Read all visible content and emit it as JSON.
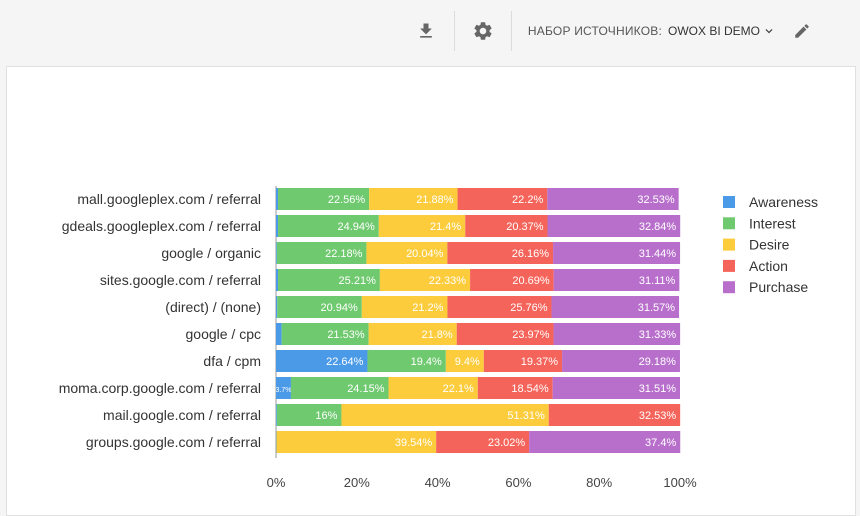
{
  "toolbar": {
    "download_icon": "download-icon",
    "settings_icon": "gear-icon",
    "source_set_label": "НАБОР ИСТОЧНИКОВ:",
    "source_set_value": "OWOX BI DEMO",
    "dropdown_icon": "chevron-down-icon",
    "edit_icon": "pencil-icon"
  },
  "chart_data": {
    "type": "bar",
    "orientation": "horizontal",
    "stacked": "percent",
    "categories": [
      "mall.googleplex.com / referral",
      "gdeals.googleplex.com / referral",
      "google / organic",
      "sites.google.com / referral",
      "(direct) / (none)",
      "google / cpc",
      "dfa / cpm",
      "moma.corp.google.com / referral",
      "mail.google.com / referral",
      "groups.google.com / referral"
    ],
    "series": [
      {
        "name": "Awareness",
        "color": "#4a9ae8",
        "values": [
          0.5,
          0.5,
          0.2,
          0.5,
          0.3,
          1.4,
          22.64,
          3.7,
          0.2,
          0.1
        ],
        "labels": [
          "",
          "",
          "",
          "",
          "",
          "",
          "22.64%",
          "3.7%",
          "",
          ""
        ]
      },
      {
        "name": "Interest",
        "color": "#6fc96f",
        "values": [
          22.56,
          24.94,
          22.18,
          25.21,
          20.94,
          21.53,
          19.4,
          24.15,
          16,
          0
        ],
        "labels": [
          "22.56%",
          "24.94%",
          "22.18%",
          "25.21%",
          "20.94%",
          "21.53%",
          "19.4%",
          "24.15%",
          "16%",
          ""
        ]
      },
      {
        "name": "Desire",
        "color": "#fccc3c",
        "values": [
          21.88,
          21.4,
          20.04,
          22.33,
          21.2,
          21.8,
          9.4,
          22.1,
          51.31,
          39.54
        ],
        "labels": [
          "21.88%",
          "21.4%",
          "20.04%",
          "22.33%",
          "21.2%",
          "21.8%",
          "9.4%",
          "22.1%",
          "51.31%",
          "39.54%"
        ]
      },
      {
        "name": "Action",
        "color": "#f4645a",
        "values": [
          22.2,
          20.37,
          26.16,
          20.69,
          25.76,
          23.97,
          19.37,
          18.54,
          32.53,
          23.02
        ],
        "labels": [
          "22.2%",
          "20.37%",
          "26.16%",
          "20.69%",
          "25.76%",
          "23.97%",
          "19.37%",
          "18.54%",
          "32.53%",
          "23.02%"
        ]
      },
      {
        "name": "Purchase",
        "color": "#b86fcc",
        "values": [
          32.53,
          32.84,
          31.44,
          31.11,
          31.57,
          31.33,
          29.18,
          31.51,
          0,
          37.4
        ],
        "labels": [
          "32.53%",
          "32.84%",
          "31.44%",
          "31.11%",
          "31.57%",
          "31.33%",
          "29.18%",
          "31.51%",
          "",
          "37.4%"
        ]
      }
    ],
    "xlim": [
      0,
      100
    ],
    "xticks": [
      "0%",
      "20%",
      "40%",
      "60%",
      "80%",
      "100%"
    ],
    "legend_position": "right",
    "grid": false
  }
}
